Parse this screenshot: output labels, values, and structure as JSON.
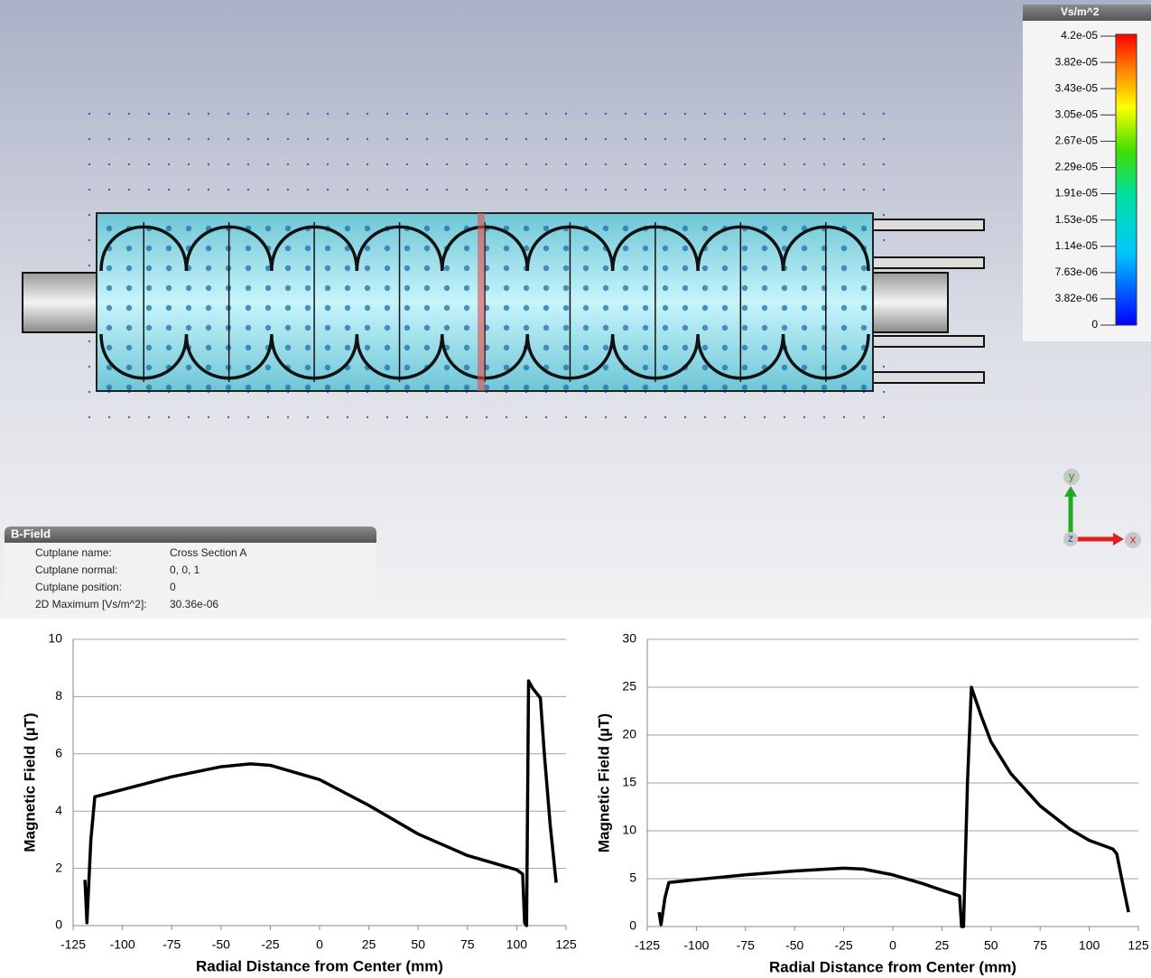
{
  "colorbar": {
    "title": "Vs/m^2",
    "labels": [
      "4.2e-05",
      "3.82e-05",
      "3.43e-05",
      "3.05e-05",
      "2.67e-05",
      "2.29e-05",
      "1.91e-05",
      "1.53e-05",
      "1.14e-05",
      "7.63e-06",
      "3.82e-06",
      "0"
    ]
  },
  "info_panel": {
    "title": "B-Field",
    "rows": [
      [
        "Cutplane name:",
        "Cross Section A"
      ],
      [
        "Cutplane normal:",
        "0, 0, 1"
      ],
      [
        "Cutplane position:",
        "0"
      ],
      [
        "2D Maximum [Vs/m^2]:",
        "30.36e-06"
      ]
    ]
  },
  "axes_triad": {
    "y": "y",
    "z": "z",
    "x": "x"
  },
  "chart_data": [
    {
      "type": "line",
      "x_label": "Radial Distance from Center (mm)",
      "y_label": "Magnetic Field (µT)",
      "x": [
        -119,
        -118,
        -116,
        -114,
        -100,
        -75,
        -50,
        -35,
        -25,
        0,
        25,
        50,
        75,
        100,
        103,
        104,
        105,
        106,
        108,
        112,
        114,
        117,
        120
      ],
      "values": [
        1.6,
        0.1,
        3.0,
        4.5,
        4.75,
        5.2,
        5.55,
        5.65,
        5.6,
        5.1,
        4.2,
        3.2,
        2.45,
        1.95,
        1.8,
        0.1,
        0,
        8.55,
        8.3,
        7.95,
        6.0,
        3.5,
        1.5
      ],
      "color": "#000000",
      "xlim": [
        -125,
        125
      ],
      "ylim": [
        0,
        10
      ],
      "xticks": [
        -125,
        -100,
        -75,
        -50,
        -25,
        0,
        25,
        50,
        75,
        100,
        125
      ],
      "yticks": [
        0,
        2,
        4,
        6,
        8,
        10
      ],
      "grid": true
    },
    {
      "type": "line",
      "x_label": "Radial Distance from Center (mm)",
      "y_label": "Magnetic Field (µT)",
      "x": [
        -119,
        -118,
        -116,
        -114,
        -100,
        -75,
        -50,
        -25,
        -15,
        0,
        15,
        25,
        34,
        35,
        36,
        38,
        40,
        45,
        50,
        60,
        75,
        90,
        100,
        112,
        114,
        117,
        120
      ],
      "values": [
        1.5,
        0.2,
        3.0,
        4.6,
        4.9,
        5.4,
        5.8,
        6.1,
        6.0,
        5.4,
        4.5,
        3.8,
        3.2,
        0,
        0,
        15,
        25,
        22,
        19.3,
        16,
        12.6,
        10.2,
        9,
        8.1,
        7.6,
        4.5,
        1.5
      ],
      "color": "#000000",
      "xlim": [
        -125,
        125
      ],
      "ylim": [
        0,
        30
      ],
      "xticks": [
        -125,
        -100,
        -75,
        -50,
        -25,
        0,
        25,
        50,
        75,
        100,
        125
      ],
      "yticks": [
        0,
        5,
        10,
        15,
        20,
        25,
        30
      ],
      "grid": true
    }
  ]
}
